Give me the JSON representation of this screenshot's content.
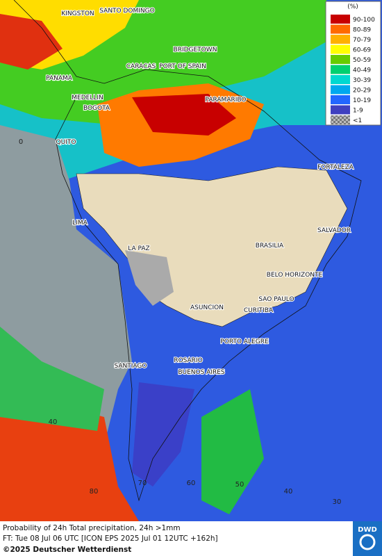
{
  "legend": {
    "unit": "(%)",
    "items": [
      {
        "label": "90-100",
        "color": "#c80000"
      },
      {
        "label": "80-89",
        "color": "#ff6a00"
      },
      {
        "label": "70-79",
        "color": "#ffb000"
      },
      {
        "label": "60-69",
        "color": "#ffff00"
      },
      {
        "label": "50-59",
        "color": "#66cc00"
      },
      {
        "label": "40-49",
        "color": "#00d070"
      },
      {
        "label": "30-39",
        "color": "#00d8d0"
      },
      {
        "label": "20-29",
        "color": "#00a8ee"
      },
      {
        "label": "10-19",
        "color": "#2266ff"
      },
      {
        "label": "1-9",
        "color": "#4040c0"
      },
      {
        "label": "<1",
        "color": "checker"
      }
    ]
  },
  "cities": [
    "KINGSTON",
    "SANTO DOMINGO",
    "BRIDGETOWN",
    "CARACAS",
    "PORT OF SPAIN",
    "PANAMA",
    "MEDELLIN",
    "BOGOTA",
    "PARAMARIBO",
    "QUITO",
    "FORTALEZA",
    "LIMA",
    "SALVADOR",
    "LA PAZ",
    "BRASILIA",
    "BELO HORIZONTE",
    "SAO PAULO",
    "ASUNCION",
    "CURITIBA",
    "PORTO ALEGRE",
    "ROSARIO",
    "SANTIAGO",
    "BUENOS AIRES"
  ],
  "grid_labels": [
    "0",
    "40",
    "80",
    "70",
    "60",
    "50",
    "40",
    "30"
  ],
  "footer": {
    "title": "Probability of 24h Total precipitation, 24h >1mm",
    "forecast": "FT: Tue 08 Jul 06 UTC [ICON EPS 2025 Jul 01 12UTC +162h]",
    "copyright": "©2025 Deutscher Wetterdienst"
  },
  "logo": "DWD"
}
